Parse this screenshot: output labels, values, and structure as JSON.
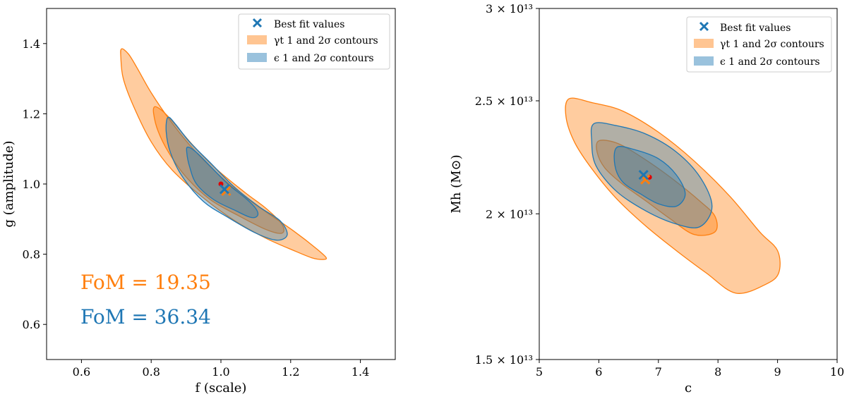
{
  "colors": {
    "orange": "#ff7f0e",
    "blue": "#1f77b4",
    "red": "#e00000",
    "frame": "#000000"
  },
  "legend_labels": {
    "best_fit": "Best fit values",
    "gamma_contours": "γt 1 and 2σ contours",
    "eps_contours": "ϵ 1 and 2σ contours"
  },
  "chart_data": [
    {
      "type": "contour",
      "xlabel": "f (scale)",
      "ylabel": "g (amplitude)",
      "xlim": [
        0.5,
        1.5
      ],
      "ylim": [
        0.5,
        1.5
      ],
      "xticks": [
        0.6,
        0.8,
        1.0,
        1.2,
        1.4
      ],
      "xtick_labels": [
        "0.6",
        "0.8",
        "1.0",
        "1.2",
        "1.4"
      ],
      "yticks": [
        0.6,
        0.8,
        1.0,
        1.2,
        1.4
      ],
      "ytick_labels": [
        "0.6",
        "0.8",
        "1.0",
        "1.2",
        "1.4"
      ],
      "legend_position": "upper right",
      "series": [
        {
          "name": "γt 1 and 2σ contours",
          "color": "#ff7f0e",
          "contours": [
            {
              "level": "2σ",
              "points": [
                [
                  0.715,
                  1.385
                ],
                [
                  0.735,
                  1.37
                ],
                [
                  0.76,
                  1.33
                ],
                [
                  0.8,
                  1.26
                ],
                [
                  0.855,
                  1.18
                ],
                [
                  0.92,
                  1.1
                ],
                [
                  0.99,
                  1.03
                ],
                [
                  1.06,
                  0.97
                ],
                [
                  1.13,
                  0.92
                ],
                [
                  1.21,
                  0.865
                ],
                [
                  1.275,
                  0.815
                ],
                [
                  1.302,
                  0.79
                ],
                [
                  1.29,
                  0.785
                ],
                [
                  1.26,
                  0.79
                ],
                [
                  1.21,
                  0.81
                ],
                [
                  1.13,
                  0.845
                ],
                [
                  1.04,
                  0.895
                ],
                [
                  0.95,
                  0.96
                ],
                [
                  0.86,
                  1.04
                ],
                [
                  0.8,
                  1.12
                ],
                [
                  0.75,
                  1.22
                ],
                [
                  0.72,
                  1.3
                ],
                [
                  0.713,
                  1.36
                ]
              ]
            },
            {
              "level": "1σ",
              "points": [
                [
                  0.81,
                  1.22
                ],
                [
                  0.83,
                  1.21
                ],
                [
                  0.86,
                  1.18
                ],
                [
                  0.92,
                  1.11
                ],
                [
                  0.99,
                  1.04
                ],
                [
                  1.07,
                  0.975
                ],
                [
                  1.13,
                  0.93
                ],
                [
                  1.175,
                  0.885
                ],
                [
                  1.175,
                  0.86
                ],
                [
                  1.13,
                  0.87
                ],
                [
                  1.05,
                  0.91
                ],
                [
                  0.97,
                  0.955
                ],
                [
                  0.9,
                  1.02
                ],
                [
                  0.85,
                  1.09
                ],
                [
                  0.82,
                  1.15
                ],
                [
                  0.807,
                  1.2
                ]
              ]
            }
          ]
        },
        {
          "name": "ϵ 1 and 2σ contours",
          "color": "#1f77b4",
          "contours": [
            {
              "level": "2σ",
              "points": [
                [
                  0.848,
                  1.19
                ],
                [
                  0.87,
                  1.17
                ],
                [
                  0.91,
                  1.12
                ],
                [
                  0.97,
                  1.06
                ],
                [
                  1.04,
                  0.99
                ],
                [
                  1.11,
                  0.935
                ],
                [
                  1.17,
                  0.895
                ],
                [
                  1.19,
                  0.855
                ],
                [
                  1.16,
                  0.84
                ],
                [
                  1.1,
                  0.86
                ],
                [
                  1.02,
                  0.905
                ],
                [
                  0.95,
                  0.95
                ],
                [
                  0.89,
                  1.02
                ],
                [
                  0.855,
                  1.09
                ],
                [
                  0.843,
                  1.15
                ]
              ]
            },
            {
              "level": "1σ",
              "points": [
                [
                  0.905,
                  1.105
                ],
                [
                  0.93,
                  1.09
                ],
                [
                  0.97,
                  1.05
                ],
                [
                  1.02,
                  1.0
                ],
                [
                  1.07,
                  0.96
                ],
                [
                  1.1,
                  0.93
                ],
                [
                  1.105,
                  0.91
                ],
                [
                  1.085,
                  0.905
                ],
                [
                  1.04,
                  0.925
                ],
                [
                  0.98,
                  0.955
                ],
                [
                  0.93,
                  1.0
                ],
                [
                  0.91,
                  1.05
                ],
                [
                  0.902,
                  1.09
                ]
              ]
            }
          ]
        }
      ],
      "best_fit": [
        {
          "series": "ϵ 1 and 2σ contours",
          "x": 1.01,
          "y": 0.985,
          "marker": "x",
          "color": "#1f77b4"
        },
        {
          "series": "γt 1 and 2σ contours",
          "x": 1.015,
          "y": 0.98,
          "marker": "x",
          "color": "#ff7f0e"
        }
      ],
      "true_value": {
        "x": 1.0,
        "y": 1.0,
        "marker": "dot",
        "color": "#e00000"
      },
      "annotations": [
        {
          "text": "FoM = 19.35",
          "x": 0.6,
          "y": 0.71,
          "color": "#ff7f0e"
        },
        {
          "text": "FoM = 36.34",
          "x": 0.6,
          "y": 0.61,
          "color": "#1f77b4"
        }
      ]
    },
    {
      "type": "contour",
      "xlabel": "c",
      "ylabel": "Mh (M⊙)",
      "xlim": [
        5,
        10
      ],
      "ylim": [
        15000000000000.0,
        30000000000000.0
      ],
      "yscale": "log",
      "xticks": [
        5,
        6,
        7,
        8,
        9,
        10
      ],
      "xtick_labels": [
        "5",
        "6",
        "7",
        "8",
        "9",
        "10"
      ],
      "yticks": [
        15000000000000.0,
        20000000000000.0,
        25000000000000.0,
        30000000000000.0
      ],
      "ytick_labels": [
        "1.5 × 10¹³",
        "2 × 10¹³",
        "2.5 × 10¹³",
        "3 × 10¹³"
      ],
      "legend_position": "upper right",
      "series": [
        {
          "name": "γt 1 and 2σ contours",
          "color": "#ff7f0e",
          "contours": [
            {
              "level": "2σ",
              "points": [
                [
                  5.5,
                  25100000000000.0
                ],
                [
                  5.9,
                  24900000000000.0
                ],
                [
                  6.4,
                  24500000000000.0
                ],
                [
                  7.0,
                  23500000000000.0
                ],
                [
                  7.6,
                  22200000000000.0
                ],
                [
                  8.2,
                  20700000000000.0
                ],
                [
                  8.7,
                  19300000000000.0
                ],
                [
                  9.0,
                  18600000000000.0
                ],
                [
                  9.02,
                  17800000000000.0
                ],
                [
                  8.8,
                  17400000000000.0
                ],
                [
                  8.3,
                  17100000000000.0
                ],
                [
                  7.8,
                  17800000000000.0
                ],
                [
                  7.3,
                  18600000000000.0
                ],
                [
                  6.8,
                  19500000000000.0
                ],
                [
                  6.3,
                  20600000000000.0
                ],
                [
                  5.9,
                  21800000000000.0
                ],
                [
                  5.6,
                  23000000000000.0
                ],
                [
                  5.45,
                  24200000000000.0
                ]
              ]
            },
            {
              "level": "1σ",
              "points": [
                [
                  6.0,
                  23100000000000.0
                ],
                [
                  6.3,
                  23000000000000.0
                ],
                [
                  6.7,
                  22400000000000.0
                ],
                [
                  7.2,
                  21500000000000.0
                ],
                [
                  7.7,
                  20500000000000.0
                ],
                [
                  7.95,
                  19900000000000.0
                ],
                [
                  7.95,
                  19300000000000.0
                ],
                [
                  7.6,
                  19200000000000.0
                ],
                [
                  7.2,
                  19800000000000.0
                ],
                [
                  6.8,
                  20500000000000.0
                ],
                [
                  6.4,
                  21200000000000.0
                ],
                [
                  6.1,
                  21900000000000.0
                ],
                [
                  5.97,
                  22600000000000.0
                ]
              ]
            }
          ]
        },
        {
          "name": "ϵ 1 and 2σ contours",
          "color": "#1f77b4",
          "contours": [
            {
              "level": "2σ",
              "points": [
                [
                  5.92,
                  23900000000000.0
                ],
                [
                  6.3,
                  23800000000000.0
                ],
                [
                  6.8,
                  23400000000000.0
                ],
                [
                  7.3,
                  22600000000000.0
                ],
                [
                  7.7,
                  21500000000000.0
                ],
                [
                  7.9,
                  20300000000000.0
                ],
                [
                  7.7,
                  19500000000000.0
                ],
                [
                  7.3,
                  19600000000000.0
                ],
                [
                  6.8,
                  20100000000000.0
                ],
                [
                  6.3,
                  20900000000000.0
                ],
                [
                  5.95,
                  22000000000000.0
                ],
                [
                  5.88,
                  23100000000000.0
                ]
              ]
            },
            {
              "level": "1σ",
              "points": [
                [
                  6.3,
                  22800000000000.0
                ],
                [
                  6.6,
                  22700000000000.0
                ],
                [
                  7.0,
                  22300000000000.0
                ],
                [
                  7.3,
                  21600000000000.0
                ],
                [
                  7.45,
                  20800000000000.0
                ],
                [
                  7.3,
                  20300000000000.0
                ],
                [
                  7.0,
                  20400000000000.0
                ],
                [
                  6.7,
                  20800000000000.0
                ],
                [
                  6.4,
                  21300000000000.0
                ],
                [
                  6.27,
                  22000000000000.0
                ]
              ]
            }
          ]
        }
      ],
      "best_fit": [
        {
          "series": "ϵ 1 and 2σ contours",
          "x": 6.75,
          "y": 21600000000000.0,
          "marker": "x",
          "color": "#1f77b4"
        },
        {
          "series": "γt 1 and 2σ contours",
          "x": 6.78,
          "y": 21400000000000.0,
          "marker": "x",
          "color": "#ff7f0e"
        }
      ],
      "true_value": {
        "x": 6.85,
        "y": 21500000000000.0,
        "marker": "dot",
        "color": "#e00000"
      }
    }
  ]
}
